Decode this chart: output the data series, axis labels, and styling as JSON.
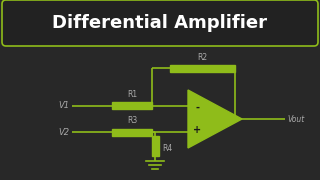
{
  "bg_color": "#282828",
  "title_box_bg": "#222222",
  "title_box_border": "#8fbc1a",
  "title_text": "Differential Amplifier",
  "title_color": "#ffffff",
  "circuit_color": "#8fbc1a",
  "label_color": "#aaaaaa",
  "opamp_fill": "#8fbc1a",
  "r1_label": "R1",
  "r2_label": "R2",
  "r3_label": "R3",
  "r4_label": "R4",
  "v1_label": "V1",
  "v2_label": "V2",
  "vout_label": "Vout",
  "minus_label": "-",
  "plus_label": "+",
  "title_fontsize": 13,
  "label_fontsize": 5.5,
  "vout_fontsize": 5.5,
  "opamp_sign_fontsize": 7
}
